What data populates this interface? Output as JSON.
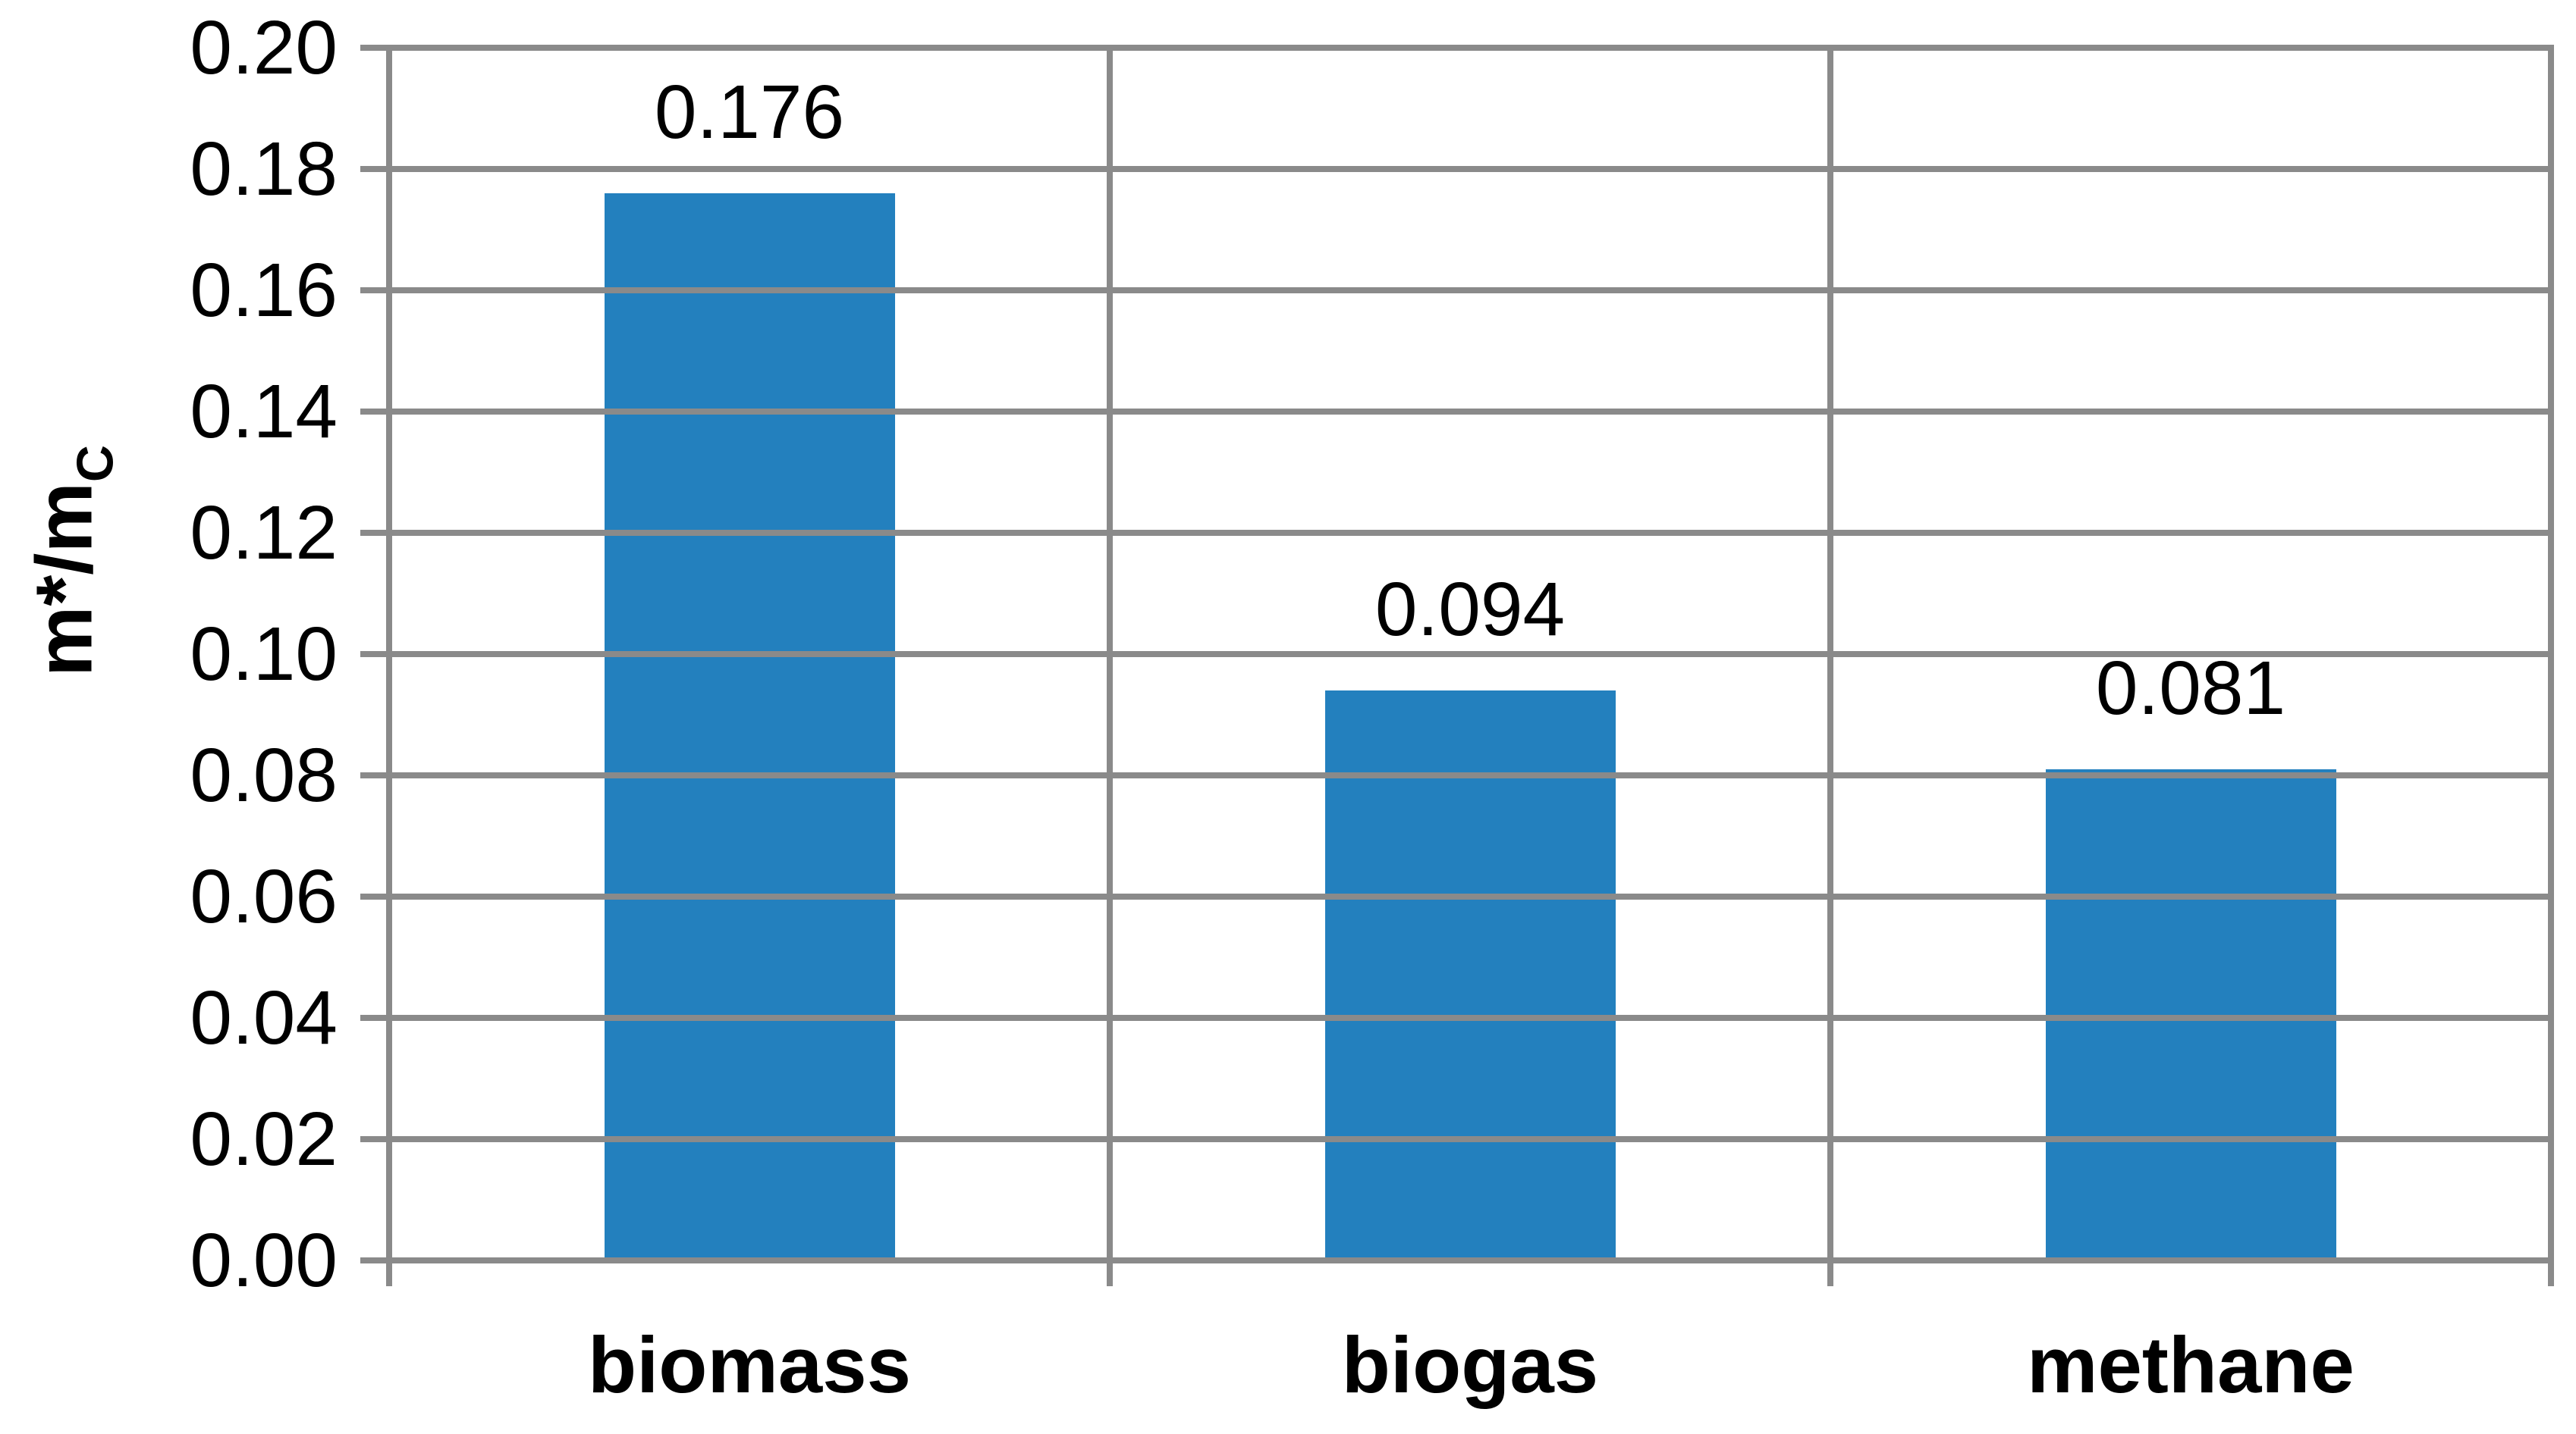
{
  "chart_data": {
    "type": "bar",
    "title": "",
    "categories": [
      "biomass",
      "biogas",
      "methane"
    ],
    "values": [
      0.176,
      0.094,
      0.081
    ],
    "value_labels": [
      "0.176",
      "0.094",
      "0.081"
    ],
    "series_name": "",
    "xlabel": "",
    "ylabel_main": "m*/m",
    "ylabel_sub": "C",
    "ylim": [
      0.0,
      0.2
    ],
    "y_tick_step": 0.02,
    "y_ticks": [
      "0.00",
      "0.02",
      "0.04",
      "0.06",
      "0.08",
      "0.10",
      "0.12",
      "0.14",
      "0.16",
      "0.18",
      "0.20"
    ],
    "grid": "horizontal-gridlines-and-category-boundary-verticals",
    "legend": "none",
    "colors": {
      "bar": "#2380BE",
      "grid": "#8A8A8A",
      "text": "#000000",
      "background": "#FFFFFF"
    }
  }
}
